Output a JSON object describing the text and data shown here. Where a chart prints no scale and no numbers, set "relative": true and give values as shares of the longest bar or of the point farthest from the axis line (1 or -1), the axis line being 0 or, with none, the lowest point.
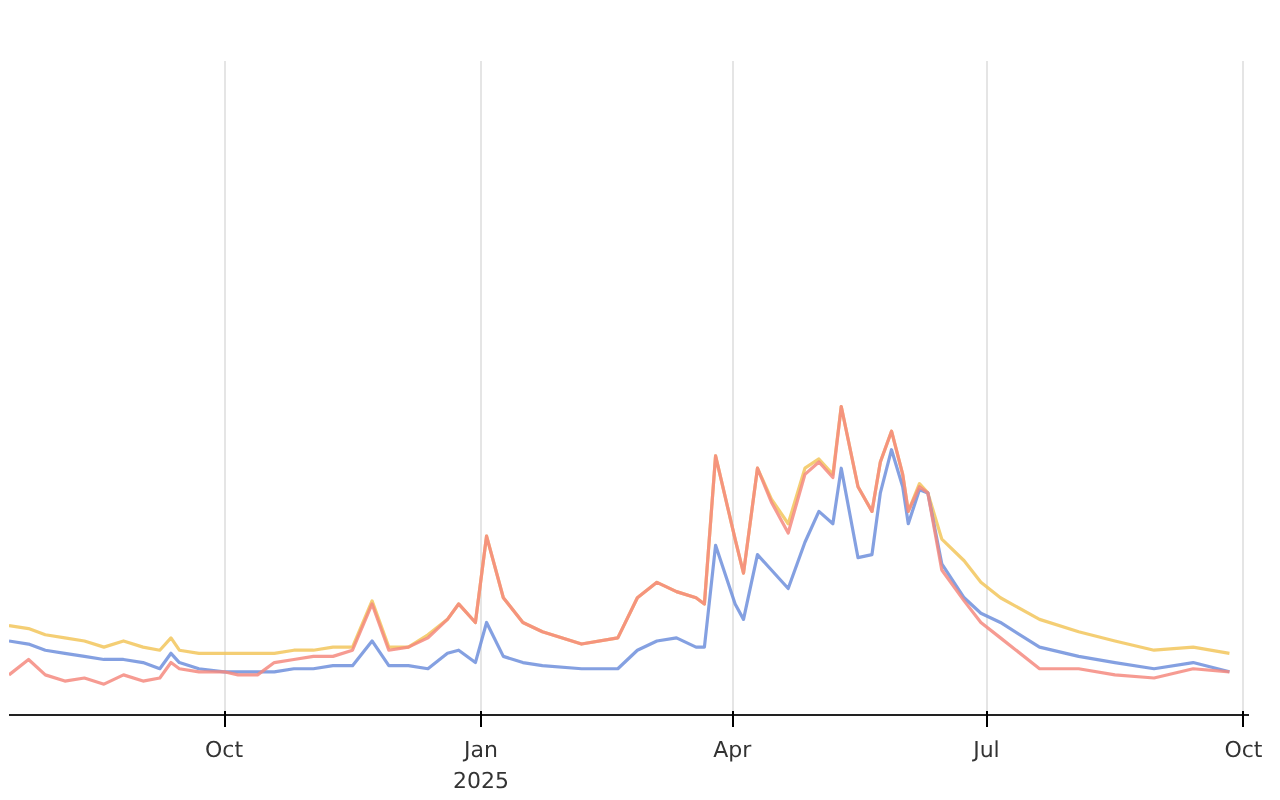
{
  "chart_data": {
    "type": "line",
    "relative": true,
    "grid": "x",
    "line_style": "solid",
    "marker": "none",
    "x": [
      "2024-07-16",
      "2024-07-23",
      "2024-07-29",
      "2024-08-05",
      "2024-08-12",
      "2024-08-19",
      "2024-08-26",
      "2024-09-02",
      "2024-09-08",
      "2024-09-12",
      "2024-09-15",
      "2024-09-22",
      "2024-10-01",
      "2024-10-06",
      "2024-10-13",
      "2024-10-19",
      "2024-10-26",
      "2024-11-02",
      "2024-11-09",
      "2024-11-16",
      "2024-11-23",
      "2024-11-29",
      "2024-12-06",
      "2024-12-13",
      "2024-12-20",
      "2024-12-24",
      "2024-12-30",
      "2025-01-03",
      "2025-01-09",
      "2025-01-16",
      "2025-01-23",
      "2025-02-06",
      "2025-02-19",
      "2025-02-26",
      "2025-03-05",
      "2025-03-12",
      "2025-03-19",
      "2025-03-22",
      "2025-03-26",
      "2025-04-02",
      "2025-04-05",
      "2025-04-10",
      "2025-04-15",
      "2025-04-21",
      "2025-04-27",
      "2025-05-02",
      "2025-05-07",
      "2025-05-10",
      "2025-05-16",
      "2025-05-21",
      "2025-05-24",
      "2025-05-28",
      "2025-06-01",
      "2025-06-03",
      "2025-06-07",
      "2025-06-10",
      "2025-06-15",
      "2025-06-23",
      "2025-06-29",
      "2025-07-06",
      "2025-07-20",
      "2025-08-03",
      "2025-08-16",
      "2025-08-30",
      "2025-09-13",
      "2025-09-26"
    ],
    "xlim": [
      "2024-07-16",
      "2025-10-03"
    ],
    "xticks": [
      {
        "value": "2024-10-01",
        "label": "Oct"
      },
      {
        "value": "2025-01-01",
        "label": "Jan\n2025"
      },
      {
        "value": "2025-04-01",
        "label": "Apr"
      },
      {
        "value": "2025-07-01",
        "label": "Jul"
      },
      {
        "value": "2025-10-01",
        "label": "Oct"
      }
    ],
    "series": [
      {
        "color": "#f2c55c",
        "values": [
          0.29,
          0.28,
          0.26,
          0.25,
          0.24,
          0.22,
          0.24,
          0.22,
          0.21,
          0.25,
          0.21,
          0.2,
          0.2,
          0.2,
          0.2,
          0.2,
          0.21,
          0.21,
          0.22,
          0.22,
          0.37,
          0.22,
          0.22,
          0.26,
          0.31,
          0.36,
          0.3,
          0.58,
          0.38,
          0.3,
          0.27,
          0.23,
          0.25,
          0.38,
          0.43,
          0.4,
          0.38,
          0.36,
          0.84,
          0.57,
          0.46,
          0.8,
          0.7,
          0.62,
          0.8,
          0.83,
          0.78,
          1.0,
          0.74,
          0.66,
          0.82,
          0.92,
          0.78,
          0.66,
          0.75,
          0.72,
          0.57,
          0.5,
          0.43,
          0.38,
          0.31,
          0.27,
          0.24,
          0.21,
          0.22,
          0.2
        ]
      },
      {
        "color": "#6f8fdc",
        "values": [
          0.24,
          0.23,
          0.21,
          0.2,
          0.19,
          0.18,
          0.18,
          0.17,
          0.15,
          0.2,
          0.17,
          0.15,
          0.14,
          0.14,
          0.14,
          0.14,
          0.15,
          0.15,
          0.16,
          0.16,
          0.24,
          0.16,
          0.16,
          0.15,
          0.2,
          0.21,
          0.17,
          0.3,
          0.19,
          0.17,
          0.16,
          0.15,
          0.15,
          0.21,
          0.24,
          0.25,
          0.22,
          0.22,
          0.55,
          0.36,
          0.31,
          0.52,
          0.47,
          0.41,
          0.56,
          0.66,
          0.62,
          0.8,
          0.51,
          0.52,
          0.72,
          0.86,
          0.74,
          0.62,
          0.73,
          0.72,
          0.49,
          0.38,
          0.33,
          0.3,
          0.22,
          0.19,
          0.17,
          0.15,
          0.17,
          0.14
        ]
      },
      {
        "color": "#f4897f",
        "values": [
          0.13,
          0.18,
          0.13,
          0.11,
          0.12,
          0.1,
          0.13,
          0.11,
          0.12,
          0.17,
          0.15,
          0.14,
          0.14,
          0.13,
          0.13,
          0.17,
          0.18,
          0.19,
          0.19,
          0.21,
          0.36,
          0.21,
          0.22,
          0.25,
          0.31,
          0.36,
          0.3,
          0.58,
          0.38,
          0.3,
          0.27,
          0.23,
          0.25,
          0.38,
          0.43,
          0.4,
          0.38,
          0.36,
          0.84,
          0.57,
          0.46,
          0.8,
          0.69,
          0.59,
          0.78,
          0.82,
          0.77,
          1.0,
          0.74,
          0.66,
          0.82,
          0.92,
          0.78,
          0.66,
          0.74,
          0.72,
          0.47,
          0.37,
          0.3,
          0.25,
          0.15,
          0.15,
          0.13,
          0.12,
          0.15,
          0.14
        ]
      }
    ]
  }
}
